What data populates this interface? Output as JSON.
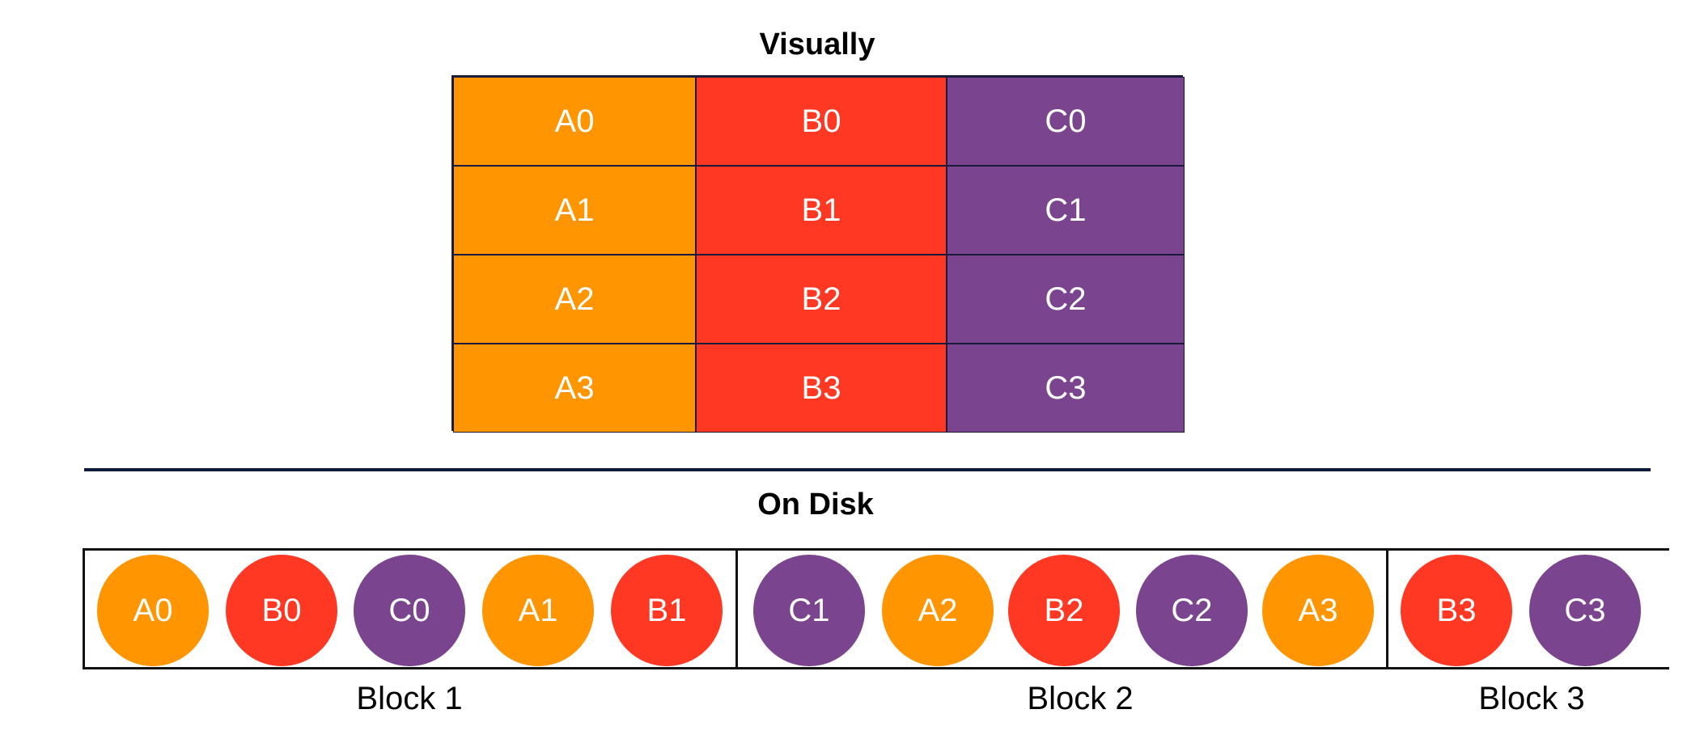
{
  "titles": {
    "visually": "Visually",
    "on_disk": "On Disk"
  },
  "colors": {
    "A": "#ff9500",
    "B": "#ff3823",
    "C": "#7a458e"
  },
  "grid": {
    "rows": [
      [
        "A0",
        "B0",
        "C0"
      ],
      [
        "A1",
        "B1",
        "C1"
      ],
      [
        "A2",
        "B2",
        "C2"
      ],
      [
        "A3",
        "B3",
        "C3"
      ]
    ]
  },
  "disk": {
    "blocks": [
      {
        "label": "Block 1",
        "items": [
          "A0",
          "B0",
          "C0",
          "A1",
          "B1"
        ]
      },
      {
        "label": "Block 2",
        "items": [
          "C1",
          "A2",
          "B2",
          "C2",
          "A3"
        ]
      },
      {
        "label": "Block 3",
        "items": [
          "B3",
          "C3"
        ]
      }
    ]
  }
}
